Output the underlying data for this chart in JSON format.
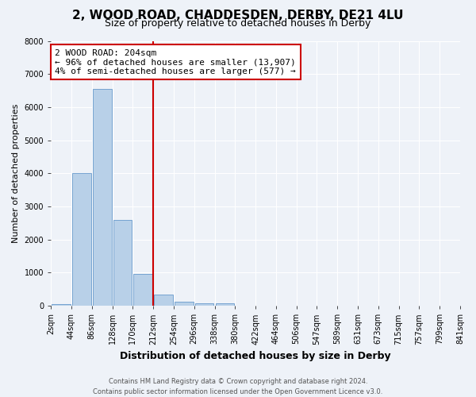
{
  "title": "2, WOOD ROAD, CHADDESDEN, DERBY, DE21 4LU",
  "subtitle": "Size of property relative to detached houses in Derby",
  "xlabel": "Distribution of detached houses by size in Derby",
  "ylabel": "Number of detached properties",
  "bin_edges": [
    "2sqm",
    "44sqm",
    "86sqm",
    "128sqm",
    "170sqm",
    "212sqm",
    "254sqm",
    "296sqm",
    "338sqm",
    "380sqm",
    "422sqm",
    "464sqm",
    "506sqm",
    "547sqm",
    "589sqm",
    "631sqm",
    "673sqm",
    "715sqm",
    "757sqm",
    "799sqm",
    "841sqm"
  ],
  "bar_values": [
    50,
    4000,
    6550,
    2600,
    970,
    330,
    120,
    80,
    80,
    0,
    0,
    0,
    0,
    0,
    0,
    0,
    0,
    0,
    0,
    0
  ],
  "bar_color": "#b8d0e8",
  "bar_edge_color": "#6699cc",
  "vline_bin_index": 4,
  "vline_color": "#cc0000",
  "ylim": [
    0,
    8000
  ],
  "yticks": [
    0,
    1000,
    2000,
    3000,
    4000,
    5000,
    6000,
    7000,
    8000
  ],
  "annotation_text": "2 WOOD ROAD: 204sqm\n← 96% of detached houses are smaller (13,907)\n4% of semi-detached houses are larger (577) →",
  "annotation_box_facecolor": "#ffffff",
  "annotation_box_edgecolor": "#cc0000",
  "footer_line1": "Contains HM Land Registry data © Crown copyright and database right 2024.",
  "footer_line2": "Contains public sector information licensed under the Open Government Licence v3.0.",
  "background_color": "#eef2f8",
  "grid_color": "#ffffff",
  "title_fontsize": 11,
  "subtitle_fontsize": 9,
  "xlabel_fontsize": 9,
  "ylabel_fontsize": 8,
  "tick_fontsize": 7,
  "annotation_fontsize": 8,
  "footer_fontsize": 6
}
